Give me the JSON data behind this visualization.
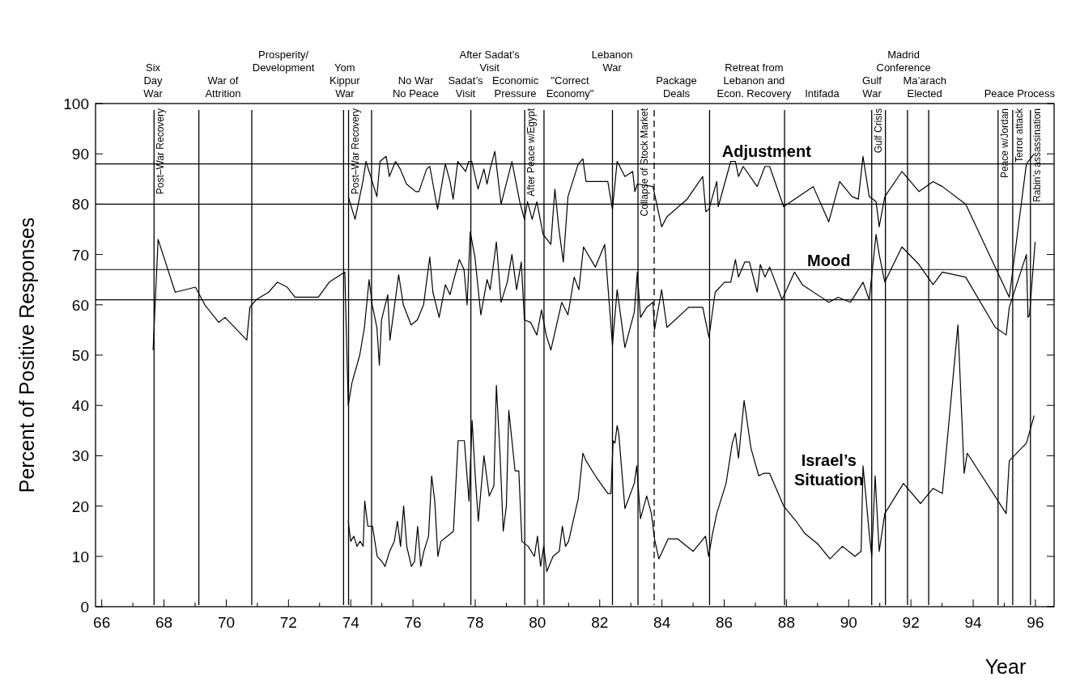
{
  "chart_data": {
    "type": "line",
    "xlabel": "Year",
    "ylabel": "Percent of Positive Responses",
    "xlim": [
      65.8,
      96.6
    ],
    "ylim": [
      0,
      100
    ],
    "xticks": [
      66,
      {
        "value": 67,
        "label": null
      },
      68,
      {
        "value": 69,
        "label": null
      },
      70,
      {
        "value": 71,
        "label": null
      },
      72,
      {
        "value": 73,
        "label": null
      },
      74,
      {
        "value": 75,
        "label": null
      },
      76,
      {
        "value": 77,
        "label": null
      },
      78,
      {
        "value": 79,
        "label": null
      },
      80,
      {
        "value": 81,
        "label": null
      },
      82,
      {
        "value": 83,
        "label": null
      },
      84,
      {
        "value": 85,
        "label": null
      },
      86,
      {
        "value": 87,
        "label": null
      },
      88,
      {
        "value": 89,
        "label": null
      },
      90,
      {
        "value": 91,
        "label": null
      },
      92,
      {
        "value": 93,
        "label": null
      },
      94,
      {
        "value": 95,
        "label": null
      },
      96
    ],
    "yticks": [
      0,
      10,
      20,
      30,
      40,
      50,
      60,
      70,
      80,
      90,
      100
    ],
    "marker": "none",
    "line_style": "solid",
    "series": [
      {
        "name": "Adjustment",
        "color": "#000000",
        "x": [
          73.92,
          74.14,
          74.39,
          74.49,
          74.64,
          74.84,
          74.94,
          75.14,
          75.24,
          75.44,
          75.59,
          75.79,
          76.09,
          76.19,
          76.44,
          76.54,
          76.79,
          77.04,
          77.19,
          77.29,
          77.44,
          77.69,
          77.79,
          77.89,
          78.09,
          78.28,
          78.38,
          78.48,
          78.63,
          78.83,
          79.18,
          79.43,
          79.58,
          79.68,
          79.83,
          79.98,
          80.18,
          80.43,
          80.56,
          80.68,
          80.83,
          80.98,
          81.31,
          81.46,
          81.56,
          82.26,
          82.41,
          82.56,
          82.81,
          83.06,
          83.13,
          83.21,
          83.71,
          83.99,
          84.16,
          84.81,
          85.31,
          85.41,
          85.51,
          85.76,
          85.81,
          86.21,
          86.36,
          86.46,
          86.61,
          87.06,
          87.31,
          87.46,
          87.91,
          88.86,
          89.36,
          89.71,
          90.11,
          90.31,
          90.46,
          90.66,
          90.88,
          90.98,
          91.16,
          91.71,
          92.26,
          92.71,
          93.01,
          93.76,
          95.16,
          95.71,
          95.96
        ],
        "values": [
          81.5,
          77,
          84.5,
          88.5,
          85.5,
          81.5,
          88.5,
          89.5,
          85.5,
          88.5,
          87,
          84,
          82.5,
          82.5,
          87,
          87.5,
          79,
          88,
          84.5,
          81,
          88.5,
          86.5,
          88.5,
          88.5,
          83,
          87,
          84,
          87,
          90.5,
          80,
          88.5,
          80.5,
          77,
          80.5,
          77,
          80.5,
          74,
          72,
          83,
          75.5,
          68.5,
          81.5,
          88,
          89,
          84.5,
          84.5,
          79,
          88.5,
          85.5,
          86.5,
          82.5,
          84,
          83.5,
          75.5,
          77.5,
          81,
          85.5,
          78.5,
          79,
          84.5,
          79.5,
          88.5,
          88.5,
          85.5,
          87.5,
          83.5,
          87.5,
          87.5,
          79.5,
          83.5,
          76.5,
          84.5,
          81.5,
          81,
          89.5,
          81.5,
          80.5,
          75.5,
          81.5,
          86.5,
          82.5,
          84.5,
          83.5,
          80,
          61.5,
          88,
          90
        ]
      },
      {
        "name": "Mood",
        "color": "#000000",
        "x": [
          67.65,
          67.81,
          68.36,
          69.01,
          69.31,
          69.76,
          69.96,
          70.66,
          70.76,
          70.96,
          71.36,
          71.64,
          71.96,
          72.21,
          72.96,
          73.31,
          73.81,
          73.92,
          74.04,
          74.29,
          74.44,
          74.59,
          74.69,
          74.84,
          74.92,
          74.99,
          75.19,
          75.26,
          75.54,
          75.69,
          75.94,
          76.14,
          76.34,
          76.54,
          76.64,
          76.84,
          77.04,
          77.19,
          77.29,
          77.49,
          77.64,
          77.74,
          77.84,
          77.99,
          78.18,
          78.38,
          78.48,
          78.68,
          78.83,
          79.03,
          79.18,
          79.33,
          79.48,
          79.58,
          79.78,
          79.98,
          80.13,
          80.28,
          80.43,
          80.78,
          80.98,
          81.18,
          81.33,
          81.48,
          81.86,
          82.16,
          82.41,
          82.56,
          82.81,
          83.11,
          83.21,
          83.31,
          83.51,
          83.71,
          83.76,
          83.99,
          84.16,
          84.86,
          85.31,
          85.51,
          85.71,
          86.01,
          86.21,
          86.36,
          86.46,
          86.66,
          86.81,
          87.06,
          87.16,
          87.31,
          87.46,
          87.86,
          88.26,
          88.51,
          89.36,
          89.66,
          90.06,
          90.46,
          90.66,
          90.88,
          90.98,
          91.16,
          91.71,
          92.26,
          92.71,
          93.01,
          93.76,
          94.71,
          95.06,
          95.16,
          95.71,
          95.76,
          95.81,
          95.99
        ],
        "values": [
          51,
          73,
          62.5,
          63.5,
          60,
          56.5,
          57.5,
          53,
          59.5,
          61,
          62.5,
          64.5,
          63.5,
          61.5,
          61.5,
          64.5,
          66.5,
          40,
          44.5,
          50,
          55.5,
          65,
          60,
          55.5,
          48,
          57,
          62,
          53,
          66,
          60,
          56,
          57,
          60,
          69.5,
          62.5,
          57.5,
          64,
          62,
          64.5,
          69,
          67,
          60,
          74.5,
          69.5,
          58,
          65,
          63,
          72.5,
          60.5,
          64.5,
          70,
          63,
          68.5,
          57,
          56.5,
          54,
          59,
          54,
          51,
          60.5,
          58,
          65.5,
          63,
          71.5,
          67.5,
          72,
          52,
          63,
          51.5,
          58.5,
          66.5,
          57.5,
          59.5,
          60.5,
          55,
          63,
          55.5,
          59.5,
          59.5,
          53.5,
          62.5,
          64.5,
          64.5,
          69,
          65.5,
          68.5,
          68.5,
          62.5,
          68,
          65.5,
          67.5,
          61,
          66.5,
          64,
          60.5,
          61.5,
          60.5,
          64.5,
          61,
          74,
          70,
          64.5,
          71.5,
          68,
          64,
          66.5,
          65.5,
          55.5,
          54,
          59.5,
          70,
          57.5,
          58,
          72.5
        ]
      },
      {
        "name": "Israel’s Situation",
        "color": "#000000",
        "x": [
          73.92,
          74.0,
          74.1,
          74.2,
          74.3,
          74.4,
          74.45,
          74.55,
          74.7,
          74.85,
          75.0,
          75.1,
          75.25,
          75.4,
          75.5,
          75.6,
          75.7,
          75.8,
          75.95,
          76.05,
          76.15,
          76.25,
          76.35,
          76.5,
          76.6,
          76.7,
          76.8,
          76.9,
          77.1,
          77.3,
          77.45,
          77.65,
          77.8,
          77.9,
          78.0,
          78.1,
          78.28,
          78.45,
          78.6,
          78.68,
          78.8,
          78.9,
          79.0,
          79.08,
          79.28,
          79.4,
          79.5,
          79.7,
          79.9,
          80.0,
          80.1,
          80.2,
          80.3,
          80.5,
          80.7,
          80.8,
          80.9,
          81.0,
          81.31,
          81.46,
          81.56,
          81.86,
          82.26,
          82.36,
          82.43,
          82.49,
          82.56,
          82.61,
          82.81,
          83.11,
          83.19,
          83.31,
          83.51,
          83.66,
          83.76,
          83.9,
          84.2,
          84.5,
          85.0,
          85.4,
          85.5,
          85.61,
          85.76,
          86.06,
          86.26,
          86.36,
          86.46,
          86.64,
          86.86,
          87.11,
          87.26,
          87.46,
          87.91,
          88.31,
          88.6,
          89.0,
          89.4,
          89.8,
          90.2,
          90.4,
          90.46,
          90.56,
          90.66,
          90.74,
          90.85,
          90.98,
          91.16,
          91.76,
          92.31,
          92.71,
          93.01,
          93.51,
          93.71,
          93.81,
          95.06,
          95.16,
          95.71,
          95.96
        ],
        "values": [
          17,
          13,
          14,
          12,
          13,
          12,
          21,
          16,
          16,
          10,
          9,
          8,
          11,
          13,
          17,
          12,
          20,
          12,
          8,
          9,
          16,
          8,
          11,
          14,
          26,
          21,
          10,
          13,
          14,
          15,
          33,
          33,
          21,
          37,
          26,
          17,
          30,
          22,
          24,
          44,
          30,
          15,
          20,
          39,
          27,
          27,
          13,
          12,
          10,
          14,
          8,
          12,
          7,
          10,
          11,
          16,
          12,
          13,
          21.5,
          30.5,
          29,
          26,
          22.5,
          22.5,
          33,
          32.5,
          36,
          34.5,
          19.5,
          24.5,
          28,
          17.5,
          22,
          18.5,
          13.5,
          9.5,
          13.5,
          13.5,
          11,
          14,
          10,
          14,
          18.5,
          24.5,
          32.5,
          34.5,
          29.5,
          41,
          31.5,
          26,
          26.5,
          26.5,
          20,
          17,
          14.5,
          12.5,
          9.5,
          12,
          10,
          11,
          28,
          21.5,
          14.5,
          10,
          26,
          11,
          18.5,
          24.5,
          20.5,
          23.5,
          22.5,
          56,
          26.5,
          30.5,
          18.5,
          29,
          32.5,
          38
        ]
      }
    ],
    "ref_lines": [
      {
        "axis": "y",
        "value": 88
      },
      {
        "axis": "y",
        "value": 80
      },
      {
        "axis": "y",
        "value": 67
      },
      {
        "axis": "y",
        "value": 61
      },
      {
        "axis": "x",
        "value": 67.68,
        "label": "Post–War Recovery"
      },
      {
        "axis": "x",
        "value": 69.12
      },
      {
        "axis": "x",
        "value": 70.82
      },
      {
        "axis": "x",
        "value": 73.77
      },
      {
        "axis": "x",
        "value": 73.93,
        "label": "Post–War Recovery"
      },
      {
        "axis": "x",
        "value": 74.67
      },
      {
        "axis": "x",
        "value": 77.86
      },
      {
        "axis": "x",
        "value": 79.59,
        "label": "After Peace w/Egypt"
      },
      {
        "axis": "x",
        "value": 80.21
      },
      {
        "axis": "x",
        "value": 82.41
      },
      {
        "axis": "x",
        "value": 83.23,
        "label": "Collapse of Stock Market"
      },
      {
        "axis": "x",
        "value": 83.75,
        "line_style": "dashed"
      },
      {
        "axis": "x",
        "value": 85.53
      },
      {
        "axis": "x",
        "value": 87.94
      },
      {
        "axis": "x",
        "value": 90.74,
        "label": "Gulf Crisis"
      },
      {
        "axis": "x",
        "value": 91.18
      },
      {
        "axis": "x",
        "value": 91.89
      },
      {
        "axis": "x",
        "value": 92.57
      },
      {
        "axis": "x",
        "value": 94.8,
        "label": "Peace w/Jordan"
      },
      {
        "axis": "x",
        "value": 95.27,
        "label": "Terror attack"
      },
      {
        "axis": "x",
        "value": 95.84,
        "label": "Rabin’s assassination"
      }
    ],
    "annotations": [
      "Six\nDay\nWar",
      "War of\nAttrition",
      "Prosperity/\nDevelopment",
      "Yom\nKippur\nWar",
      "No War\nNo Peace",
      "Sadat’s\nVisit",
      "Economic\nPressure",
      "\"Correct\nEconomy\"",
      "Package\nDeals",
      "Retreat from\nLebanon and\nEcon. Recovery",
      "Intifada",
      "Gulf\nWar",
      "Ma’arach\nElected",
      "After Sadat’s\nVisit",
      "Lebanon\nWar",
      "Madrid\nConference",
      "Peace Process"
    ]
  }
}
